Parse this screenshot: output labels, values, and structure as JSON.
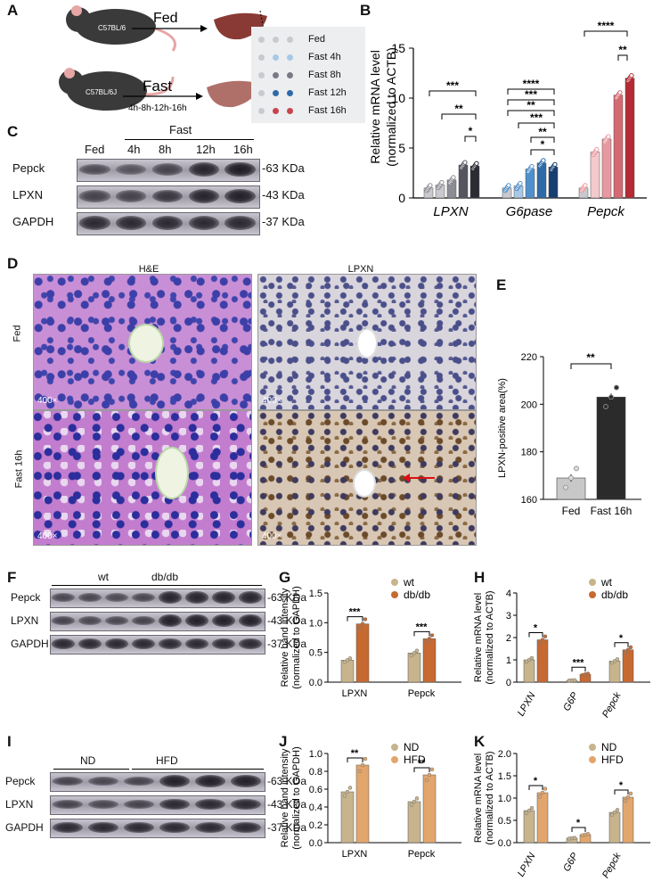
{
  "panel_letters": {
    "A": "A",
    "B": "B",
    "C": "C",
    "D": "D",
    "E": "E",
    "F": "F",
    "G": "G",
    "H": "H",
    "I": "I",
    "J": "J",
    "K": "K"
  },
  "panelA": {
    "mouse_strain_1": "C57BL/6",
    "mouse_strain_2": "C57BL/6J",
    "fed_label": "Fed",
    "fast_label": "Fast",
    "timeline": "4h-8h-12h-16h",
    "legend": [
      {
        "label": "Fed",
        "color": "#c9c9cf"
      },
      {
        "label": "Fast 4h",
        "color": "#a9c8e6"
      },
      {
        "label": "Fast 8h",
        "color": "#7a7a86"
      },
      {
        "label": "Fast 12h",
        "color": "#2f6aa8"
      },
      {
        "label": "Fast 16h",
        "color": "#c8444c"
      }
    ]
  },
  "panelB": {
    "ylabel1": "Relative  mRNA level",
    "ylabel2": "(normalized to ACTB)",
    "ticks": [
      "0",
      "5",
      "10",
      "15"
    ],
    "groups": [
      "LPXN",
      "G6pase",
      "Pepck"
    ],
    "sig": [
      "***",
      "**",
      "*",
      "****",
      "***",
      "**",
      "***",
      "**",
      "*",
      "****",
      "**"
    ],
    "colors": {
      "LPXN": [
        "#c9c9cf",
        "#c9c9cf",
        "#8c8c94",
        "#555560",
        "#2b2b33"
      ],
      "G6pase": [
        "#c9c9cf",
        "#a9c8e6",
        "#4f8fcc",
        "#2f6aa8",
        "#173e70"
      ],
      "Pepck": [
        "#c9c9cf",
        "#f3c9cc",
        "#e8999f",
        "#d46a72",
        "#b52a33"
      ]
    },
    "values": {
      "LPXN": [
        1.0,
        1.3,
        1.8,
        3.3,
        3.2
      ],
      "G6pase": [
        1.0,
        1.2,
        2.9,
        3.5,
        3.1
      ],
      "Pepck": [
        1.0,
        4.6,
        5.9,
        10.3,
        12.0
      ]
    }
  },
  "panelC": {
    "header_fast": "Fast",
    "lanes": [
      "Fed",
      "4h",
      "8h",
      "12h",
      "16h"
    ],
    "rows": [
      {
        "name": "Pepck",
        "kda": "63 KDa",
        "intensity": [
          0.45,
          0.35,
          0.55,
          0.9,
          1.0
        ]
      },
      {
        "name": "LPXN",
        "kda": "43 KDa",
        "intensity": [
          0.55,
          0.55,
          0.7,
          0.9,
          0.95
        ]
      },
      {
        "name": "GAPDH",
        "kda": "37 KDa",
        "intensity": [
          0.85,
          0.85,
          0.85,
          0.85,
          0.85
        ]
      }
    ]
  },
  "panelD": {
    "col1": "H&E",
    "col2": "LPXN",
    "row1": "Fed",
    "row2": "Fast 16h",
    "mag": "400×"
  },
  "panelE": {
    "ylabel": "LPXN-positive area(%)",
    "ticks": [
      "160",
      "180",
      "200",
      "220"
    ],
    "categories": [
      "Fed",
      "Fast 16h"
    ],
    "values": [
      169,
      203
    ],
    "colors": [
      "#c8c8c8",
      "#2b2b2b"
    ],
    "sig": "**"
  },
  "panelF": {
    "groups": [
      "wt",
      "db/db"
    ],
    "rows": [
      {
        "name": "Pepck",
        "kda": "63 KDa",
        "intensity": [
          0.5,
          0.5,
          0.45,
          0.5,
          0.9,
          0.9,
          0.9,
          0.9
        ]
      },
      {
        "name": "LPXN",
        "kda": "43 KDa",
        "intensity": [
          0.55,
          0.5,
          0.5,
          0.55,
          0.95,
          0.95,
          0.95,
          0.95
        ]
      },
      {
        "name": "GAPDH",
        "kda": "37 KDa",
        "intensity": [
          0.85,
          0.85,
          0.85,
          0.85,
          0.85,
          0.85,
          0.85,
          0.85
        ]
      }
    ]
  },
  "panelG": {
    "ylabel1": "Relative band intensity",
    "ylabel2": "(normalized to GAPDH)",
    "ticks": [
      "0.0",
      "0.5",
      "1.0",
      "1.5"
    ],
    "categories": [
      "LPXN",
      "Pepck"
    ],
    "legend": [
      "wt",
      "db/db"
    ],
    "colors": [
      "#c8b48c",
      "#c66a32"
    ],
    "values": {
      "wt": [
        0.37,
        0.49
      ],
      "db/db": [
        0.98,
        0.73
      ]
    },
    "sig": [
      "***",
      "***"
    ]
  },
  "panelH": {
    "ylabel1": "Relative  mRNA level",
    "ylabel2": "(normalized to ACTB)",
    "ticks": [
      "0",
      "1",
      "2",
      "3",
      "4"
    ],
    "categories": [
      "LPXN",
      "G6P",
      "Pepck"
    ],
    "legend": [
      "wt",
      "db/db"
    ],
    "colors": [
      "#c8b48c",
      "#c66a32"
    ],
    "values": {
      "wt": [
        1.0,
        0.08,
        0.95
      ],
      "db/db": [
        1.9,
        0.35,
        1.45
      ]
    },
    "sig": [
      "*",
      "***",
      "*"
    ]
  },
  "panelI": {
    "groups": [
      "ND",
      "HFD"
    ],
    "rows": [
      {
        "name": "Pepck",
        "kda": "63 KDa",
        "intensity": [
          0.55,
          0.5,
          0.55,
          0.95,
          0.95,
          0.95
        ]
      },
      {
        "name": "LPXN",
        "kda": "43 KDa",
        "intensity": [
          0.55,
          0.5,
          0.55,
          0.85,
          0.85,
          0.85
        ]
      },
      {
        "name": "GAPDH",
        "kda": "37 KDa",
        "intensity": [
          0.85,
          0.85,
          0.85,
          0.85,
          0.85,
          0.85
        ]
      }
    ]
  },
  "panelJ": {
    "ylabel1": "Relative band intensity",
    "ylabel2": "(normalized to GAPDH)",
    "ticks": [
      "0.0",
      "0.2",
      "0.4",
      "0.6",
      "0.8",
      "1.0"
    ],
    "categories": [
      "LPXN",
      "Pepck"
    ],
    "legend": [
      "ND",
      "HFD"
    ],
    "colors": [
      "#c8b48c",
      "#e2a66c"
    ],
    "values": {
      "ND": [
        0.57,
        0.46
      ],
      "HFD": [
        0.87,
        0.76
      ]
    },
    "sig": [
      "**",
      "**"
    ]
  },
  "panelK": {
    "ylabel1": "Relative  mRNA level",
    "ylabel2": "(normalized to ACTB)",
    "ticks": [
      "0.0",
      "0.5",
      "1.0",
      "1.5",
      "2.0"
    ],
    "categories": [
      "LPXN",
      "G6P",
      "Pepck"
    ],
    "legend": [
      "ND",
      "HFD"
    ],
    "colors": [
      "#c8b48c",
      "#e2a66c"
    ],
    "values": {
      "ND": [
        0.72,
        0.1,
        0.68
      ],
      "HFD": [
        1.12,
        0.18,
        1.02
      ]
    },
    "sig": [
      "*",
      "*",
      "*"
    ]
  }
}
